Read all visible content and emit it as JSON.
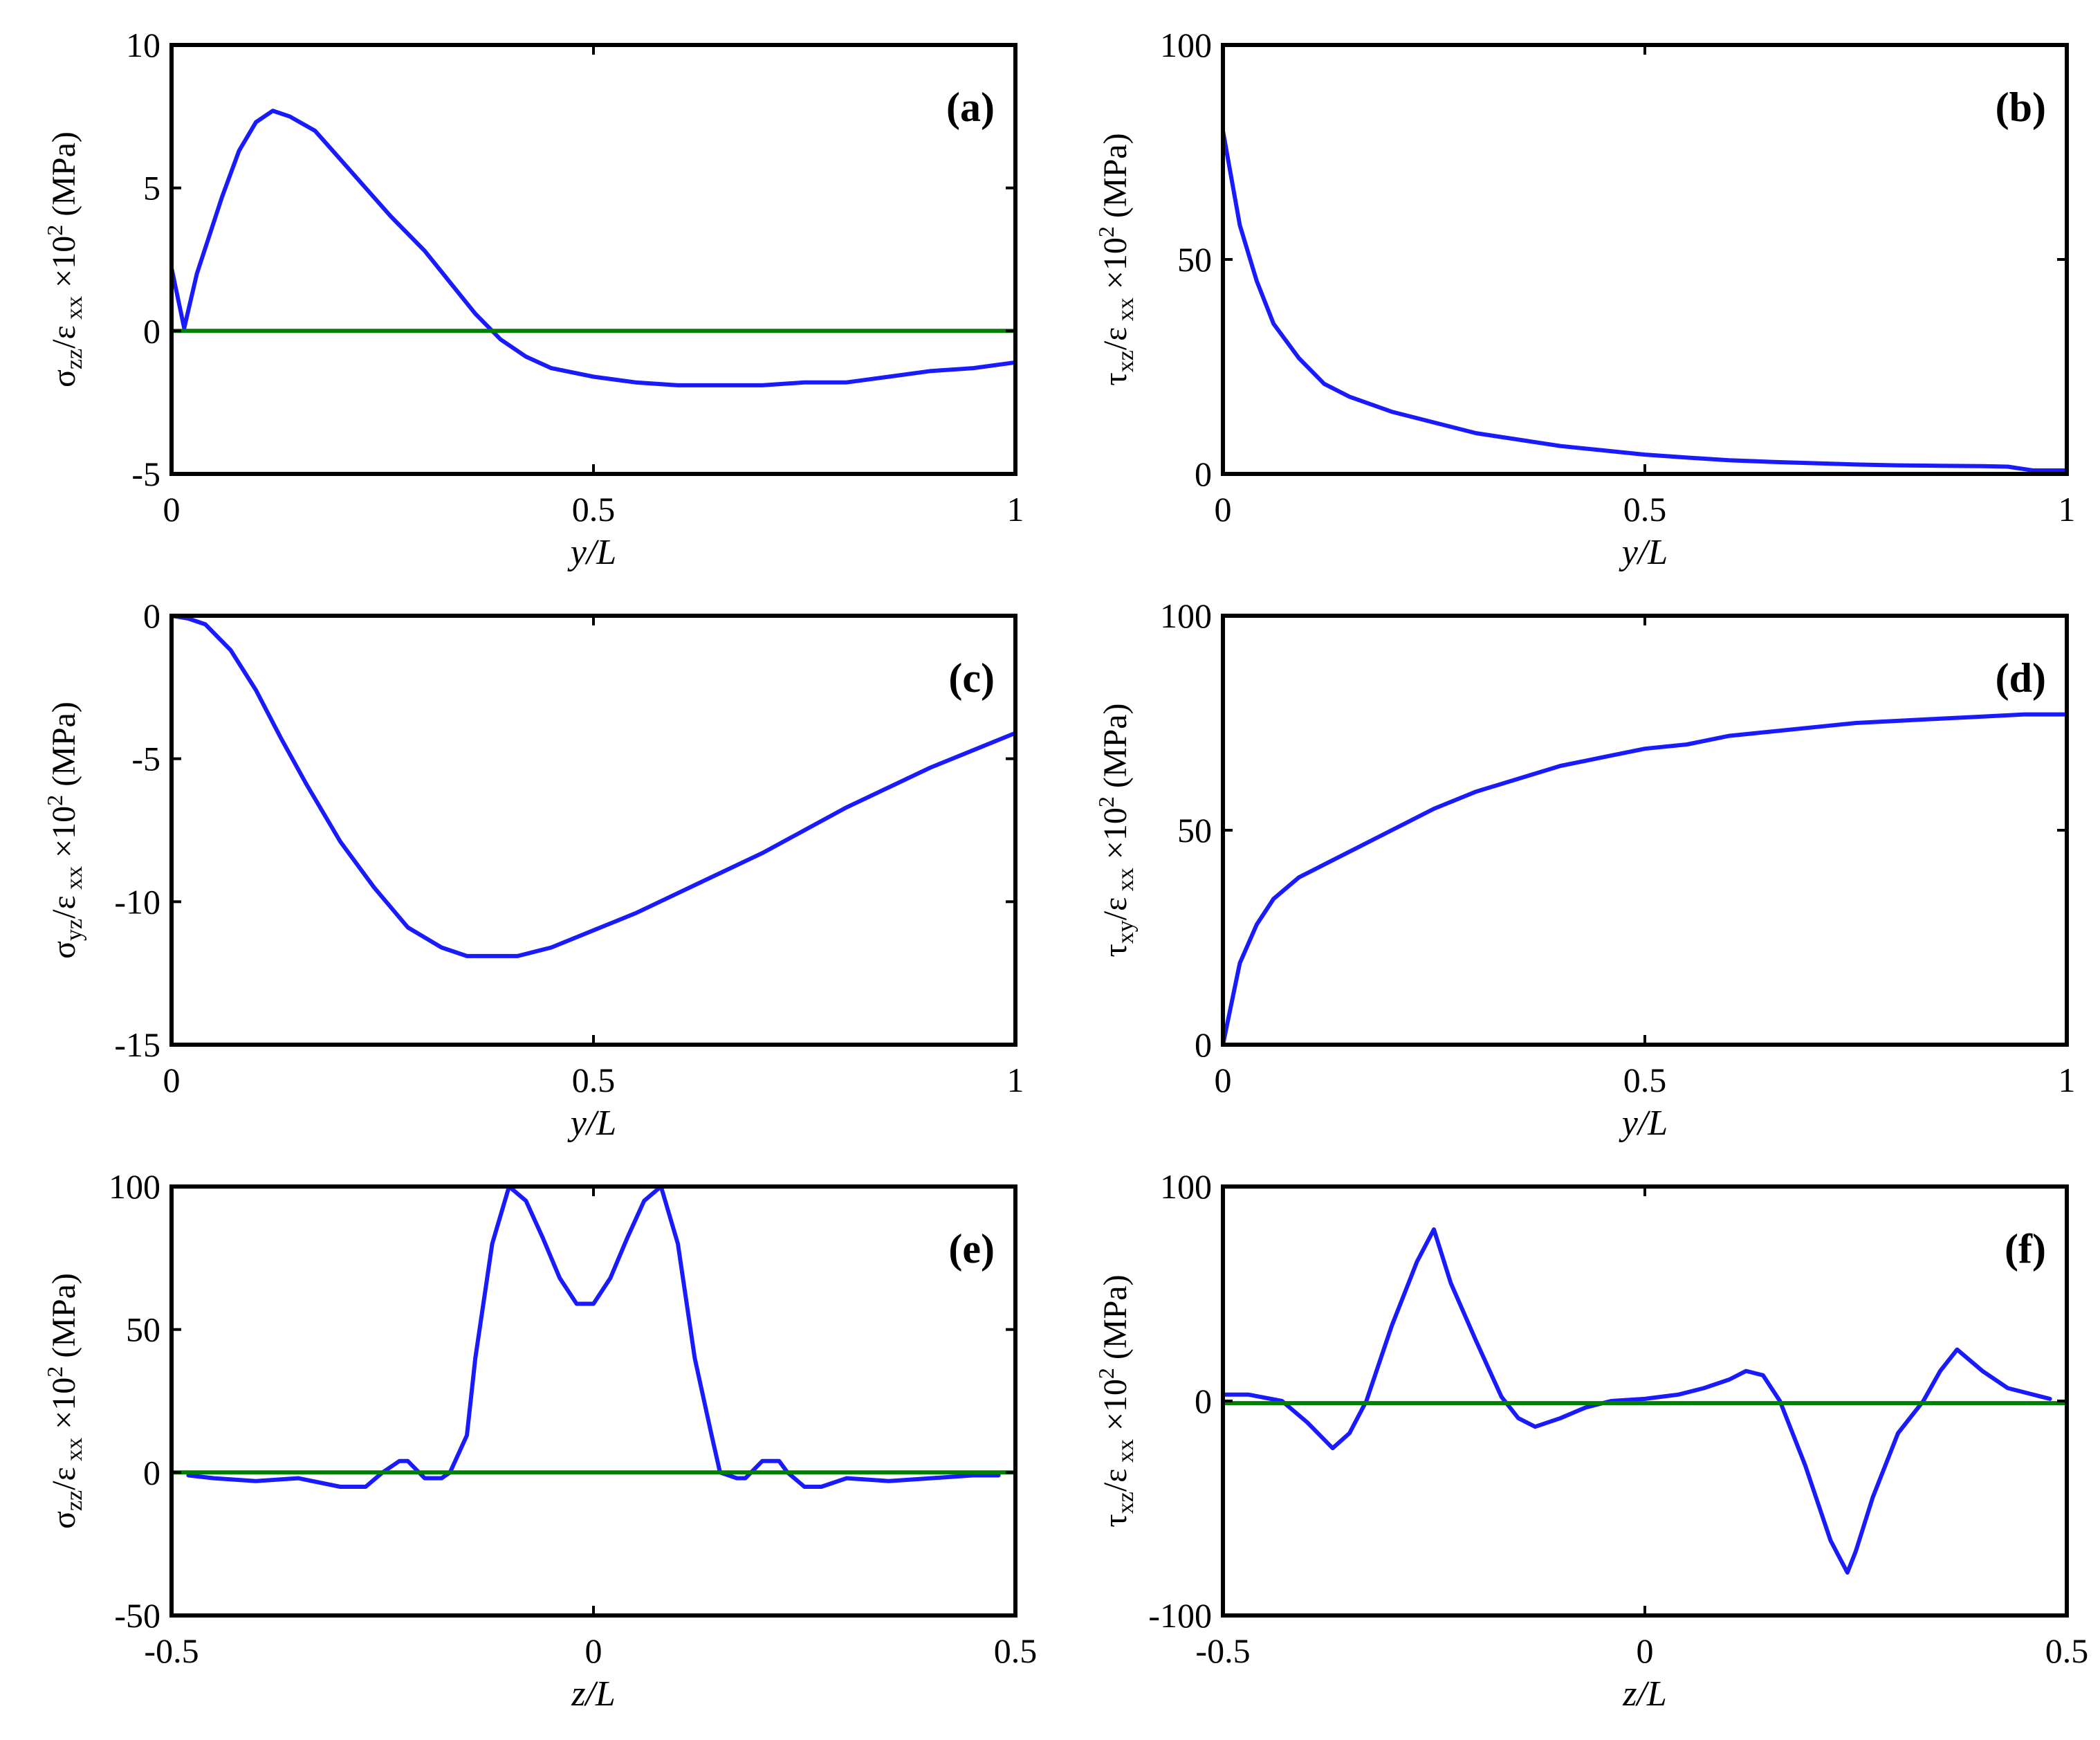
{
  "chart_data": [
    {
      "type": "line",
      "panel": "(a)",
      "xlabel": "y/L",
      "ylabel": {
        "sym": "σ",
        "sub": "zz",
        "mid": "/ε",
        "sub2": " xx",
        "times": " ×10",
        "sup": "2",
        "unit": " (MPa)"
      },
      "xlim": [
        0,
        1
      ],
      "ylim": [
        -5,
        10
      ],
      "xticks": [
        0,
        0.5,
        1
      ],
      "xtick_labels": [
        "0",
        "0.5",
        "1"
      ],
      "yticks": [
        -5,
        0,
        5,
        10
      ],
      "ytick_labels": [
        "-5",
        "0",
        "5",
        "10"
      ],
      "series": [
        {
          "name": "blue",
          "color": "#1a1aff",
          "x": [
            0,
            0.015,
            0.03,
            0.06,
            0.08,
            0.1,
            0.12,
            0.14,
            0.17,
            0.2,
            0.23,
            0.26,
            0.3,
            0.33,
            0.36,
            0.39,
            0.42,
            0.45,
            0.5,
            0.55,
            0.6,
            0.65,
            0.7,
            0.75,
            0.8,
            0.85,
            0.9,
            0.95,
            1
          ],
          "y": [
            2.2,
            0.1,
            2,
            4.7,
            6.3,
            7.3,
            7.7,
            7.5,
            7.0,
            6.0,
            5.0,
            4.0,
            2.8,
            1.7,
            0.6,
            -0.3,
            -0.9,
            -1.3,
            -1.6,
            -1.8,
            -1.9,
            -1.9,
            -1.9,
            -1.8,
            -1.8,
            -1.6,
            -1.4,
            -1.3,
            -1.1
          ]
        },
        {
          "name": "green",
          "color": "#008000",
          "x": [
            0,
            1
          ],
          "y": [
            0,
            0
          ]
        }
      ]
    },
    {
      "type": "line",
      "panel": "(b)",
      "xlabel": "y/L",
      "ylabel": {
        "sym": "τ",
        "sub": "xz",
        "mid": "/ε",
        "sub2": " xx",
        "times": " ×10",
        "sup": "2",
        "unit": " (MPa)"
      },
      "xlim": [
        0,
        1
      ],
      "ylim": [
        0,
        100
      ],
      "xticks": [
        0,
        0.5,
        1
      ],
      "xtick_labels": [
        "0",
        "0.5",
        "1"
      ],
      "yticks": [
        0,
        50,
        100
      ],
      "ytick_labels": [
        "0",
        "50",
        "100"
      ],
      "series": [
        {
          "name": "blue",
          "color": "#1a1aff",
          "x": [
            0,
            0.02,
            0.04,
            0.06,
            0.09,
            0.12,
            0.15,
            0.2,
            0.25,
            0.3,
            0.35,
            0.4,
            0.45,
            0.5,
            0.55,
            0.6,
            0.65,
            0.7,
            0.75,
            0.8,
            0.85,
            0.9,
            0.93,
            0.96,
            1
          ],
          "y": [
            80,
            58,
            45,
            35,
            27,
            21,
            18,
            14.5,
            12,
            9.5,
            8,
            6.5,
            5.5,
            4.5,
            3.8,
            3.2,
            2.8,
            2.5,
            2.2,
            2.0,
            1.9,
            1.8,
            1.7,
            0.8,
            0.8
          ]
        },
        {
          "name": "green",
          "color": "#008000",
          "x": [
            0,
            1
          ],
          "y": [
            0,
            0
          ]
        }
      ]
    },
    {
      "type": "line",
      "panel": "(c)",
      "xlabel": "y/L",
      "ylabel": {
        "sym": "σ",
        "sub": "yz",
        "mid": "/ε",
        "sub2": " xx",
        "times": " ×10",
        "sup": "2",
        "unit": " (MPa)"
      },
      "xlim": [
        0,
        1
      ],
      "ylim": [
        -15,
        0
      ],
      "xticks": [
        0,
        0.5,
        1
      ],
      "xtick_labels": [
        "0",
        "0.5",
        "1"
      ],
      "yticks": [
        -15,
        -10,
        -5,
        0
      ],
      "ytick_labels": [
        "-15",
        "-10",
        "-5",
        "0"
      ],
      "series": [
        {
          "name": "blue",
          "color": "#1a1aff",
          "x": [
            0,
            0.02,
            0.04,
            0.07,
            0.1,
            0.13,
            0.16,
            0.2,
            0.24,
            0.28,
            0.32,
            0.35,
            0.38,
            0.41,
            0.45,
            0.5,
            0.55,
            0.6,
            0.65,
            0.7,
            0.75,
            0.8,
            0.85,
            0.9,
            0.95,
            1
          ],
          "y": [
            0,
            -0.1,
            -0.3,
            -1.2,
            -2.6,
            -4.3,
            -5.9,
            -7.9,
            -9.5,
            -10.9,
            -11.6,
            -11.9,
            -11.9,
            -11.9,
            -11.6,
            -11.0,
            -10.4,
            -9.7,
            -9.0,
            -8.3,
            -7.5,
            -6.7,
            -6.0,
            -5.3,
            -4.7,
            -4.1
          ]
        },
        {
          "name": "green",
          "color": "#008000",
          "x": [
            0,
            1
          ],
          "y": [
            0,
            0
          ]
        }
      ]
    },
    {
      "type": "line",
      "panel": "(d)",
      "xlabel": "y/L",
      "ylabel": {
        "sym": "τ",
        "sub": "xy",
        "mid": "/ε",
        "sub2": " xx",
        "times": " ×10",
        "sup": "2",
        "unit": " (MPa)"
      },
      "xlim": [
        0,
        1
      ],
      "ylim": [
        0,
        100
      ],
      "xticks": [
        0,
        0.5,
        1
      ],
      "xtick_labels": [
        "0",
        "0.5",
        "1"
      ],
      "yticks": [
        0,
        50,
        100
      ],
      "ytick_labels": [
        "0",
        "50",
        "100"
      ],
      "series": [
        {
          "name": "blue",
          "color": "#1a1aff",
          "x": [
            0,
            0.02,
            0.04,
            0.06,
            0.09,
            0.12,
            0.16,
            0.2,
            0.25,
            0.3,
            0.35,
            0.4,
            0.45,
            0.5,
            0.55,
            0.6,
            0.65,
            0.7,
            0.75,
            0.8,
            0.85,
            0.9,
            0.95,
            1
          ],
          "y": [
            0,
            19,
            28,
            34,
            39,
            42,
            46,
            50,
            55,
            59,
            62,
            65,
            67,
            69,
            70,
            72,
            73,
            74,
            75,
            75.5,
            76,
            76.5,
            77,
            77
          ]
        },
        {
          "name": "green",
          "color": "#008000",
          "x": [
            0,
            1
          ],
          "y": [
            0,
            0
          ]
        }
      ]
    },
    {
      "type": "line",
      "panel": "(e)",
      "xlabel": "z/L",
      "ylabel": {
        "sym": "σ",
        "sub": "zz",
        "mid": "/ε",
        "sub2": " xx",
        "times": " ×10",
        "sup": "2",
        "unit": " (MPa)"
      },
      "xlim": [
        -0.5,
        0.5
      ],
      "ylim": [
        -50,
        100
      ],
      "xticks": [
        -0.5,
        0,
        0.5
      ],
      "xtick_labels": [
        "-0.5",
        "0",
        "0.5"
      ],
      "yticks": [
        -50,
        0,
        50,
        100
      ],
      "ytick_labels": [
        "-50",
        "0",
        "50",
        "100"
      ],
      "series": [
        {
          "name": "blue",
          "color": "#1a1aff",
          "x": [
            -0.48,
            -0.45,
            -0.4,
            -0.35,
            -0.3,
            -0.27,
            -0.25,
            -0.23,
            -0.22,
            -0.2,
            -0.18,
            -0.17,
            -0.15,
            -0.14,
            -0.12,
            -0.1,
            -0.08,
            -0.06,
            -0.04,
            -0.02,
            0,
            0.02,
            0.04,
            0.06,
            0.08,
            0.1,
            0.12,
            0.14,
            0.15,
            0.17,
            0.18,
            0.2,
            0.22,
            0.23,
            0.25,
            0.27,
            0.3,
            0.35,
            0.4,
            0.45,
            0.48
          ],
          "y": [
            -1,
            -2,
            -3,
            -2,
            -5,
            -5,
            0,
            4,
            4,
            -2,
            -2,
            0,
            13,
            40,
            80,
            100,
            95,
            82,
            68,
            59,
            59,
            68,
            82,
            95,
            100,
            80,
            40,
            13,
            0,
            -2,
            -2,
            4,
            4,
            0,
            -5,
            -5,
            -2,
            -3,
            -2,
            -1,
            -1
          ]
        },
        {
          "name": "green",
          "color": "#008000",
          "x": [
            -0.5,
            0.5
          ],
          "y": [
            0,
            0
          ]
        }
      ]
    },
    {
      "type": "line",
      "panel": "(f)",
      "xlabel": "z/L",
      "ylabel": {
        "sym": "τ",
        "sub": "xz",
        "mid": "/ε",
        "sub2": " xx",
        "times": " ×10",
        "sup": "2",
        "unit": " (MPa)"
      },
      "xlim": [
        -0.5,
        0.5
      ],
      "ylim": [
        -100,
        100
      ],
      "xticks": [
        -0.5,
        0,
        0.5
      ],
      "xtick_labels": [
        "-0.5",
        "0",
        "0.5"
      ],
      "yticks": [
        -100,
        0,
        100
      ],
      "ytick_labels": [
        "-100",
        "0",
        "100"
      ],
      "series": [
        {
          "name": "blue",
          "color": "#1a1aff",
          "x": [
            -0.5,
            -0.47,
            -0.43,
            -0.4,
            -0.37,
            -0.35,
            -0.33,
            -0.3,
            -0.27,
            -0.25,
            -0.23,
            -0.2,
            -0.17,
            -0.15,
            -0.13,
            -0.1,
            -0.07,
            -0.04,
            0,
            0.04,
            0.07,
            0.1,
            0.12,
            0.14,
            0.16,
            0.19,
            0.22,
            0.24,
            0.25,
            0.27,
            0.3,
            0.33,
            0.35,
            0.37,
            0.4,
            0.43,
            0.47,
            0.48
          ],
          "y": [
            3,
            3,
            0,
            -10,
            -22,
            -15,
            0,
            35,
            65,
            80,
            55,
            28,
            2,
            -8,
            -12,
            -8,
            -3,
            0,
            1,
            3,
            6,
            10,
            14,
            12,
            0,
            -30,
            -65,
            -80,
            -70,
            -45,
            -15,
            0,
            14,
            24,
            14,
            6,
            2,
            1
          ]
        },
        {
          "name": "green",
          "color": "#008000",
          "x": [
            -0.5,
            0.5
          ],
          "y": [
            -1,
            -1
          ]
        }
      ]
    }
  ]
}
